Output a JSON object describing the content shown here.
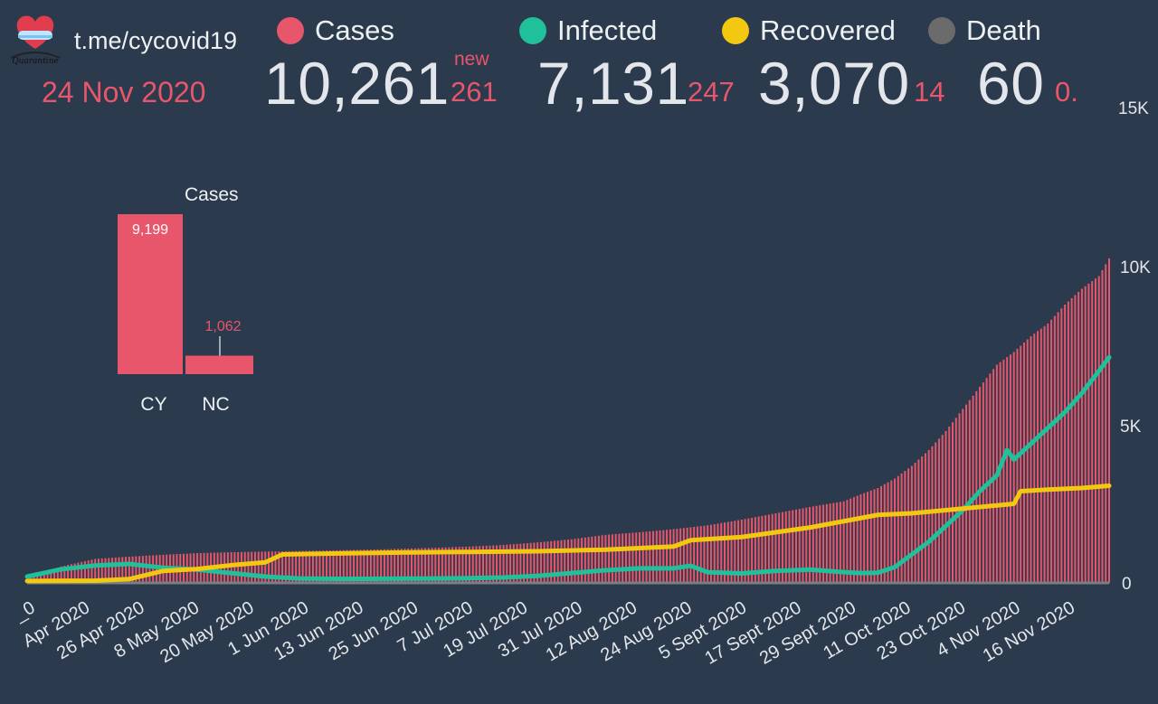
{
  "header": {
    "channel": "t.me/cycovid19",
    "date": "24 Nov 2020",
    "new_label": "new"
  },
  "stats": [
    {
      "name": "Cases",
      "value": "10,261",
      "delta": "261",
      "color": "#e8566b"
    },
    {
      "name": "Infected",
      "value": "7,131",
      "delta": "247",
      "color": "#1fc09a"
    },
    {
      "name": "Recovered",
      "value": "3,070",
      "delta": "14",
      "color": "#f2c811"
    },
    {
      "name": "Death",
      "value": "60",
      "delta": "0.",
      "color": "#6b6b6b"
    }
  ],
  "chart_data": [
    {
      "type": "bar+line",
      "x_tick_labels": [
        "_0",
        "Apr 2020",
        "26 Apr 2020",
        "8 May 2020",
        "20 May 2020",
        "1 Jun 2020",
        "13 Jun 2020",
        "25 Jun 2020",
        "7 Jul 2020",
        "19 Jul 2020",
        "31 Jul 2020",
        "12 Aug 2020",
        "24 Aug 2020",
        "5 Sept 2020",
        "17 Sept 2020",
        "29 Sept 2020",
        "11 Oct 2020",
        "23 Oct 2020",
        "4 Nov 2020",
        "16 Nov 2020"
      ],
      "y_tick_labels": [
        "0",
        "5K",
        "10K",
        "15K"
      ],
      "ylim": [
        0,
        15000
      ],
      "series": [
        {
          "name": "Cases",
          "type": "bar",
          "color": "#e8566b",
          "points": [
            [
              0,
              120
            ],
            [
              10,
              520
            ],
            [
              20,
              760
            ],
            [
              30,
              830
            ],
            [
              40,
              890
            ],
            [
              50,
              940
            ],
            [
              60,
              970
            ],
            [
              70,
              990
            ],
            [
              80,
              1010
            ],
            [
              90,
              1030
            ],
            [
              100,
              1050
            ],
            [
              110,
              1080
            ],
            [
              120,
              1110
            ],
            [
              130,
              1150
            ],
            [
              140,
              1200
            ],
            [
              150,
              1280
            ],
            [
              160,
              1380
            ],
            [
              170,
              1520
            ],
            [
              180,
              1600
            ],
            [
              190,
              1700
            ],
            [
              200,
              1820
            ],
            [
              210,
              2000
            ],
            [
              220,
              2200
            ],
            [
              230,
              2400
            ],
            [
              240,
              2580
            ],
            [
              245,
              2800
            ],
            [
              250,
              3000
            ],
            [
              255,
              3300
            ],
            [
              260,
              3700
            ],
            [
              265,
              4200
            ],
            [
              270,
              4800
            ],
            [
              275,
              5500
            ],
            [
              280,
              6200
            ],
            [
              285,
              6900
            ],
            [
              290,
              7300
            ],
            [
              295,
              7800
            ],
            [
              300,
              8200
            ],
            [
              305,
              8800
            ],
            [
              310,
              9300
            ],
            [
              315,
              9700
            ],
            [
              318,
              10261
            ]
          ]
        },
        {
          "name": "Infected",
          "type": "line",
          "color": "#1fc09a",
          "points": [
            [
              0,
              200
            ],
            [
              10,
              430
            ],
            [
              20,
              550
            ],
            [
              30,
              600
            ],
            [
              40,
              480
            ],
            [
              50,
              420
            ],
            [
              60,
              310
            ],
            [
              70,
              200
            ],
            [
              80,
              140
            ],
            [
              90,
              130
            ],
            [
              100,
              130
            ],
            [
              110,
              135
            ],
            [
              120,
              140
            ],
            [
              130,
              150
            ],
            [
              140,
              170
            ],
            [
              150,
              220
            ],
            [
              160,
              310
            ],
            [
              170,
              400
            ],
            [
              180,
              460
            ],
            [
              190,
              460
            ],
            [
              195,
              540
            ],
            [
              200,
              340
            ],
            [
              210,
              300
            ],
            [
              220,
              380
            ],
            [
              230,
              420
            ],
            [
              240,
              340
            ],
            [
              245,
              310
            ],
            [
              250,
              320
            ],
            [
              255,
              500
            ],
            [
              260,
              900
            ],
            [
              265,
              1300
            ],
            [
              270,
              1800
            ],
            [
              275,
              2300
            ],
            [
              280,
              2900
            ],
            [
              285,
              3400
            ],
            [
              288,
              4200
            ],
            [
              290,
              3900
            ],
            [
              295,
              4400
            ],
            [
              300,
              4900
            ],
            [
              305,
              5400
            ],
            [
              310,
              6000
            ],
            [
              315,
              6700
            ],
            [
              318,
              7131
            ]
          ]
        },
        {
          "name": "Recovered",
          "type": "line",
          "color": "#f2c811",
          "points": [
            [
              0,
              60
            ],
            [
              20,
              70
            ],
            [
              30,
              120
            ],
            [
              40,
              380
            ],
            [
              50,
              440
            ],
            [
              60,
              560
            ],
            [
              70,
              650
            ],
            [
              75,
              900
            ],
            [
              90,
              930
            ],
            [
              110,
              960
            ],
            [
              130,
              980
            ],
            [
              150,
              1000
            ],
            [
              170,
              1050
            ],
            [
              190,
              1150
            ],
            [
              195,
              1350
            ],
            [
              210,
              1450
            ],
            [
              220,
              1600
            ],
            [
              230,
              1750
            ],
            [
              240,
              1950
            ],
            [
              250,
              2150
            ],
            [
              260,
              2200
            ],
            [
              270,
              2300
            ],
            [
              280,
              2400
            ],
            [
              290,
              2500
            ],
            [
              292,
              2900
            ],
            [
              300,
              2950
            ],
            [
              310,
              3000
            ],
            [
              318,
              3070
            ]
          ]
        },
        {
          "name": "Death",
          "type": "line",
          "color": "#6b6b6b",
          "points": [
            [
              0,
              0
            ],
            [
              318,
              60
            ]
          ]
        }
      ]
    },
    {
      "type": "bar",
      "title": "Cases",
      "categories": [
        "CY",
        "NC"
      ],
      "values": [
        9199,
        1062
      ],
      "value_labels": [
        "9,199",
        "1,062"
      ],
      "color": "#e8566b"
    }
  ]
}
